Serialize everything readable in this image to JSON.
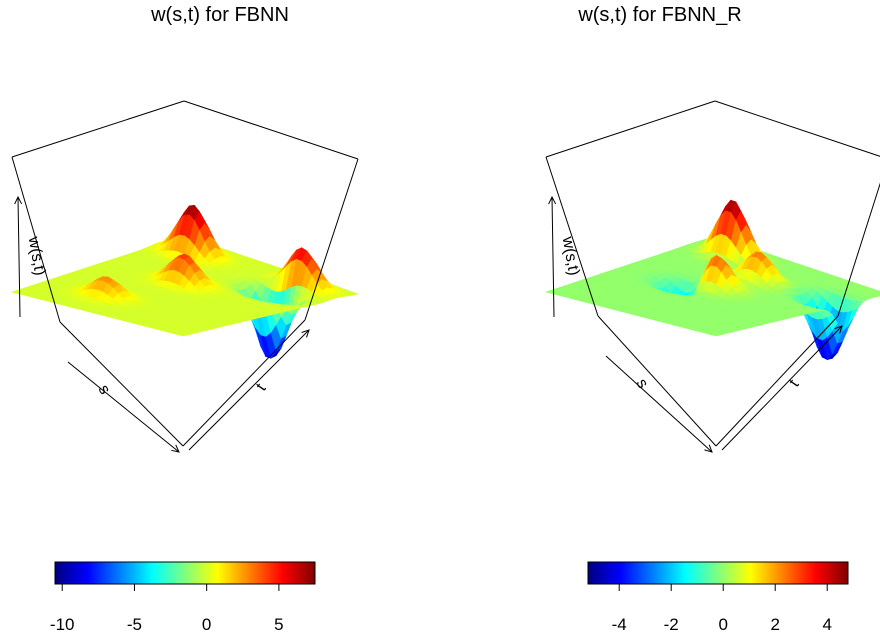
{
  "chart_data": [
    {
      "type": "surface",
      "title": "w(s,t) for FBNN",
      "xlabel": "s",
      "ylabel": "t",
      "zlabel": "w(s,t)",
      "colorbar": {
        "range": [
          -10.5,
          7.5
        ],
        "ticks": [
          -10,
          -5,
          0,
          5
        ],
        "tick_labels": [
          "-10",
          "-5",
          "0",
          "5"
        ],
        "colormap": [
          "#00007f",
          "#0000ff",
          "#007fff",
          "#00ffff",
          "#7fff7f",
          "#ffff00",
          "#ff7f00",
          "#ff0000",
          "#7f0000"
        ]
      },
      "zlim": [
        -10.5,
        7.5
      ],
      "grid": "none",
      "bumps": [
        {
          "s": 0.2,
          "t": 0.85,
          "w": 7.5
        },
        {
          "s": 0.8,
          "t": 0.88,
          "w": 6.0
        },
        {
          "s": 0.45,
          "t": 0.55,
          "w": 4.5
        },
        {
          "s": 0.75,
          "t": 0.75,
          "w": -10.5
        },
        {
          "s": 0.35,
          "t": 0.2,
          "w": 3.0
        }
      ]
    },
    {
      "type": "surface",
      "title": "w(s,t) for FBNN_R",
      "xlabel": "s",
      "ylabel": "t",
      "zlabel": "w(s,t)",
      "colorbar": {
        "range": [
          -5.2,
          4.8
        ],
        "ticks": [
          -4,
          -2,
          0,
          2,
          4
        ],
        "tick_labels": [
          "-4",
          "-2",
          "0",
          "2",
          "4"
        ],
        "colormap": [
          "#00007f",
          "#0000ff",
          "#007fff",
          "#00ffff",
          "#7fff7f",
          "#ffff00",
          "#ff7f00",
          "#ff0000",
          "#7f0000"
        ]
      },
      "zlim": [
        -5.2,
        4.8
      ],
      "grid": "none",
      "bumps": [
        {
          "s": 0.25,
          "t": 0.85,
          "w": 4.8
        },
        {
          "s": 0.55,
          "t": 0.7,
          "w": 2.5
        },
        {
          "s": 0.5,
          "t": 0.5,
          "w": 3.0
        },
        {
          "s": 0.9,
          "t": 0.75,
          "w": -5.2
        },
        {
          "s": 0.35,
          "t": 0.45,
          "w": -2.5
        }
      ]
    }
  ]
}
